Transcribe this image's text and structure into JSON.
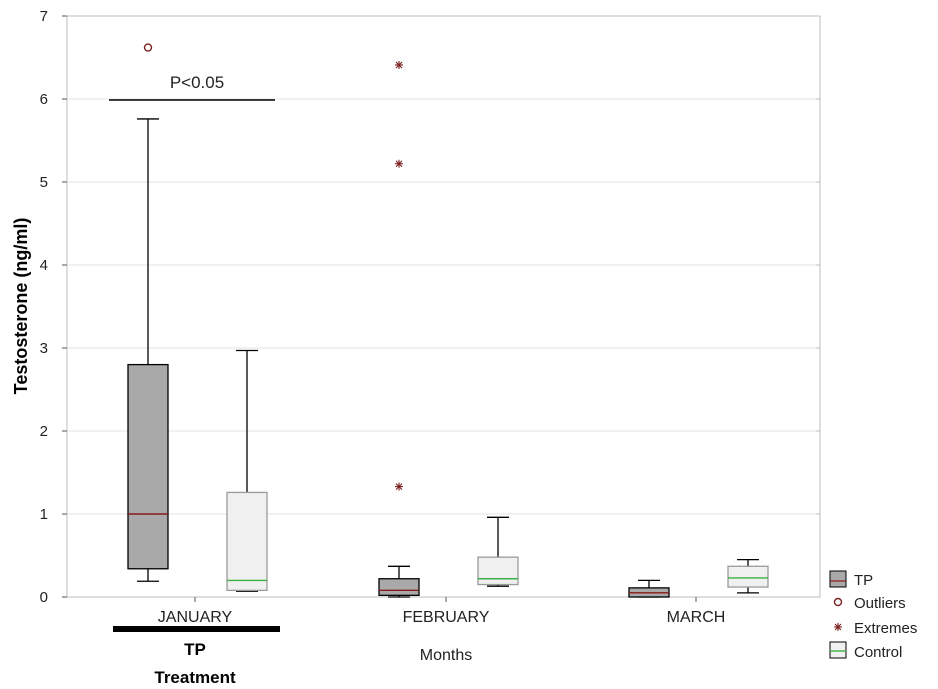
{
  "chart_data": {
    "type": "boxplot",
    "ylabel": "Testosterone (ng/ml)",
    "xlabel": "Months",
    "ylim": [
      0,
      7
    ],
    "yticks": [
      0,
      1,
      2,
      3,
      4,
      5,
      6,
      7
    ],
    "categories": [
      "JANUARY",
      "FEBRUARY",
      "MARCH"
    ],
    "grid": true,
    "legend_position": "bottom-right",
    "legend": [
      {
        "key": "tp",
        "label": "TP"
      },
      {
        "key": "outliers",
        "label": "Outliers"
      },
      {
        "key": "extremes",
        "label": "Extremes"
      },
      {
        "key": "control",
        "label": "Control"
      }
    ],
    "series": [
      {
        "name": "TP",
        "fill": "#a9a9a9",
        "median_color": "#8b1a1a",
        "boxes": [
          {
            "category": "JANUARY",
            "whisker_low": 0.19,
            "q1": 0.34,
            "median": 1.0,
            "q3": 2.8,
            "whisker_high": 5.76,
            "outliers": [
              6.62
            ],
            "extremes": []
          },
          {
            "category": "FEBRUARY",
            "whisker_low": 0.0,
            "q1": 0.02,
            "median": 0.08,
            "q3": 0.22,
            "whisker_high": 0.37,
            "outliers": [],
            "extremes": [
              6.41,
              5.22,
              1.33
            ]
          },
          {
            "category": "MARCH",
            "whisker_low": 0.0,
            "q1": 0.0,
            "median": 0.05,
            "q3": 0.11,
            "whisker_high": 0.2,
            "outliers": [],
            "extremes": []
          }
        ]
      },
      {
        "name": "Control",
        "fill": "#f0f0f0",
        "median_color": "#3cb043",
        "boxes": [
          {
            "category": "JANUARY",
            "whisker_low": 0.07,
            "q1": 0.08,
            "median": 0.2,
            "q3": 1.26,
            "whisker_high": 2.97,
            "outliers": [],
            "extremes": []
          },
          {
            "category": "FEBRUARY",
            "whisker_low": 0.13,
            "q1": 0.15,
            "median": 0.22,
            "q3": 0.48,
            "whisker_high": 0.96,
            "outliers": [],
            "extremes": []
          },
          {
            "category": "MARCH",
            "whisker_low": 0.05,
            "q1": 0.12,
            "median": 0.23,
            "q3": 0.37,
            "whisker_high": 0.45,
            "outliers": [],
            "extremes": []
          }
        ]
      }
    ],
    "annotations": {
      "significance_label": "P<0.05",
      "treatment_group_label": "TP",
      "treatment_caption": "Treatment"
    }
  }
}
